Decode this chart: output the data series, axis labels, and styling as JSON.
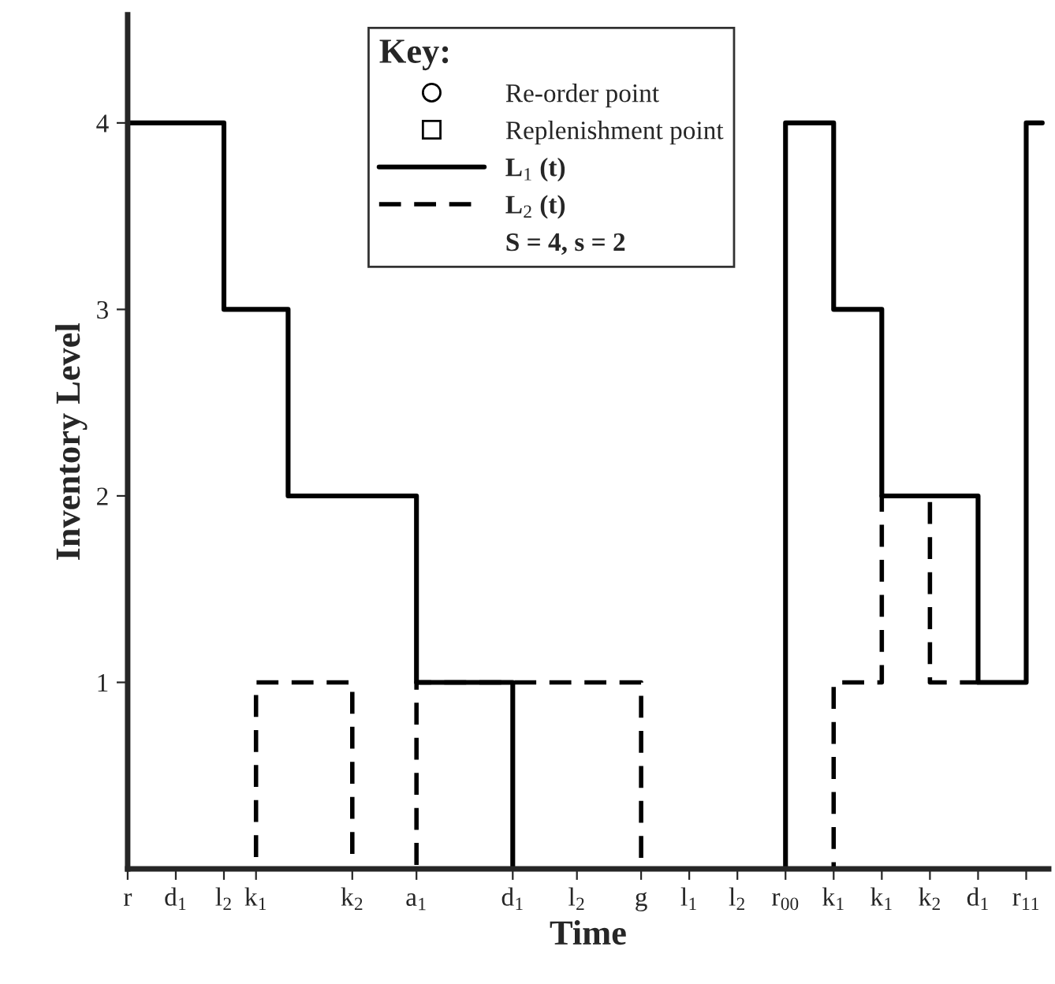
{
  "chart_data": {
    "type": "step",
    "xlabel": "Time",
    "ylabel": "Inventory Level",
    "legend_title": "Key:",
    "categories": [
      "r",
      null,
      null,
      "d$_{1}$",
      null,
      null,
      "l$_{2}$",
      null,
      "k$_{1}$",
      null,
      null,
      null,
      null,
      null,
      "k$_{2}$",
      null,
      null,
      null,
      "a$_{1}$",
      null,
      null,
      null,
      null,
      null,
      "d$_{1}$",
      null,
      null,
      null,
      "l$_{2}$",
      null,
      null,
      null,
      "g",
      null,
      null,
      "l$_{1}$",
      null,
      null,
      "l$_{2}$",
      null,
      null,
      "r$_{00}$",
      null,
      null,
      "k$_{1}$",
      null,
      null,
      "k$_{1}$",
      null,
      null,
      "k$_{2}$",
      null,
      null,
      "d$_{1}$",
      null,
      null,
      "r$_{11}$",
      null
    ],
    "ylim": [
      0,
      4.58
    ],
    "yticks": [
      1,
      2,
      3,
      4
    ],
    "legend": "top",
    "grid": false,
    "annotations": [
      "S = 4, s = 2"
    ],
    "series": [
      {
        "name": "Re-order point",
        "type": "scatter",
        "marker": "circle",
        "color": "#000000",
        "values": [
          null,
          null,
          null,
          null,
          null,
          null,
          null,
          null,
          null,
          null,
          null,
          null,
          null,
          null,
          null,
          null,
          null,
          null,
          null,
          null,
          null,
          null,
          null,
          null,
          null,
          null,
          null,
          null,
          null,
          null,
          null,
          null,
          null,
          null,
          null,
          null,
          null,
          null,
          null,
          null,
          null,
          null,
          null,
          null,
          null,
          null,
          null,
          null,
          null,
          null,
          null,
          null,
          null,
          null,
          null,
          null,
          null,
          null
        ]
      },
      {
        "name": "Replenishment point",
        "type": "scatter",
        "marker": "square",
        "color": "#000000",
        "values": [
          null,
          null,
          null,
          null,
          null,
          null,
          null,
          null,
          null,
          null,
          null,
          null,
          null,
          null,
          null,
          null,
          null,
          null,
          null,
          null,
          null,
          null,
          null,
          null,
          null,
          null,
          null,
          null,
          null,
          null,
          null,
          null,
          null,
          null,
          null,
          null,
          null,
          null,
          null,
          null,
          null,
          null,
          null,
          null,
          null,
          null,
          null,
          null,
          null,
          null,
          null,
          null,
          null,
          null,
          null,
          null,
          null,
          null
        ]
      },
      {
        "name": "L$_{1}$ (t)",
        "color": "#000000",
        "line_style": "solid",
        "values": [
          4,
          4,
          4,
          4,
          4,
          4,
          3,
          3,
          3,
          3,
          2,
          2,
          2,
          2,
          2,
          2,
          2,
          2,
          1,
          1,
          1,
          1,
          1,
          1,
          0,
          0,
          0,
          0,
          0,
          0,
          0,
          0,
          0,
          0,
          0,
          0,
          0,
          0,
          0,
          0,
          0,
          4,
          4,
          4,
          3,
          3,
          3,
          2,
          2,
          2,
          2,
          2,
          2,
          1,
          1,
          1,
          4,
          4
        ]
      },
      {
        "name": "L$_{2}$ (t)",
        "color": "#000000",
        "line_style": "dashed",
        "values": [
          0,
          0,
          0,
          0,
          0,
          0,
          0,
          0,
          1,
          1,
          1,
          1,
          1,
          1,
          0,
          0,
          0,
          0,
          1,
          1,
          1,
          1,
          1,
          1,
          1,
          1,
          1,
          1,
          1,
          1,
          1,
          1,
          0,
          0,
          0,
          0,
          0,
          0,
          0,
          0,
          0,
          0,
          0,
          0,
          1,
          1,
          1,
          2,
          2,
          2,
          1,
          1,
          1,
          1,
          null,
          null,
          null,
          null
        ]
      }
    ]
  }
}
